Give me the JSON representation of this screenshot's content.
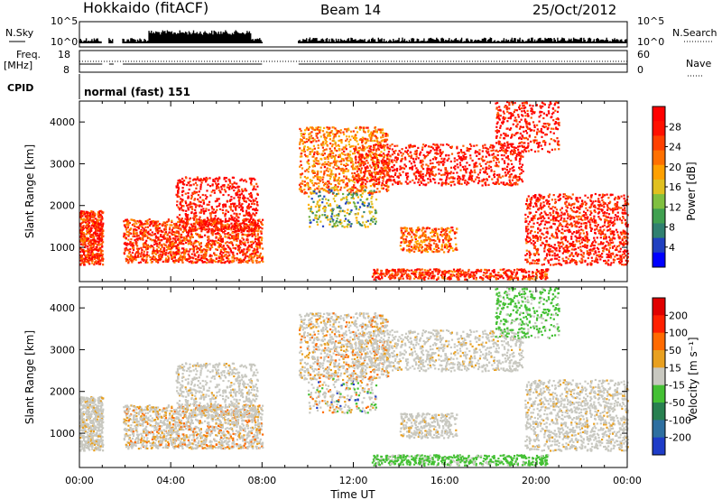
{
  "header": {
    "station": "Hokkaido (fitACF)",
    "beam": "Beam 14",
    "date": "25/Oct/2012"
  },
  "top_panels": {
    "nsky_label": "N.Sky",
    "nsky_ticks": [
      "10^5",
      "10^0"
    ],
    "nsearch_label": "N.Search",
    "nsearch_ticks": [
      "10^5",
      "10^0"
    ],
    "freq_label": "Freq.",
    "freq_unit": "[MHz]",
    "freq_ticks": [
      "18",
      "8"
    ],
    "nave_label": "Nave",
    "nave_ticks": [
      "60",
      "0"
    ],
    "cpid_label": "CPID",
    "cpid_text": "normal (fast) 151"
  },
  "chart_data": [
    {
      "type": "heatmap",
      "title": "",
      "xlabel": "",
      "ylabel": "Slant Range [km]",
      "x_ticks": [
        "00:00",
        "04:00",
        "08:00",
        "12:00",
        "16:00",
        "20:00",
        "00:00"
      ],
      "x_range_hours": [
        0,
        24
      ],
      "y_ticks": [
        1000,
        2000,
        3000,
        4000
      ],
      "ylim": [
        180,
        4500
      ],
      "colorbar": {
        "label": "Power [dB]",
        "ticks": [
          "28",
          "24",
          "20",
          "16",
          "12",
          "8",
          "4"
        ],
        "colors": [
          "#0000ff",
          "#2040c0",
          "#308070",
          "#40a050",
          "#80c040",
          "#e0c020",
          "#ffa000",
          "#ff7000",
          "#ff4000",
          "#ff1000",
          "#ff0000"
        ]
      },
      "data_gaps_hours": [
        [
          1.0,
          1.3
        ],
        [
          1.5,
          1.9
        ],
        [
          8.0,
          9.6
        ]
      ]
    },
    {
      "type": "heatmap",
      "title": "",
      "xlabel": "Time UT",
      "ylabel": "Slant Range [km]",
      "x_ticks": [
        "00:00",
        "04:00",
        "08:00",
        "12:00",
        "16:00",
        "20:00",
        "00:00"
      ],
      "x_range_hours": [
        0,
        24
      ],
      "y_ticks": [
        1000,
        2000,
        3000,
        4000
      ],
      "ylim": [
        180,
        4500
      ],
      "colorbar": {
        "label": "Velocity [m s⁻¹]",
        "ticks": [
          "200",
          "100",
          "50",
          "15",
          "-15",
          "-50",
          "-100",
          "-200"
        ],
        "colors": [
          "#1e3cc8",
          "#2e6fa0",
          "#288050",
          "#44c034",
          "#c8c8c0",
          "#e8a020",
          "#ff6a00",
          "#ff2000",
          "#e00000"
        ]
      },
      "data_gaps_hours": [
        [
          1.0,
          1.3
        ],
        [
          1.5,
          1.9
        ],
        [
          8.0,
          9.6
        ]
      ]
    }
  ]
}
